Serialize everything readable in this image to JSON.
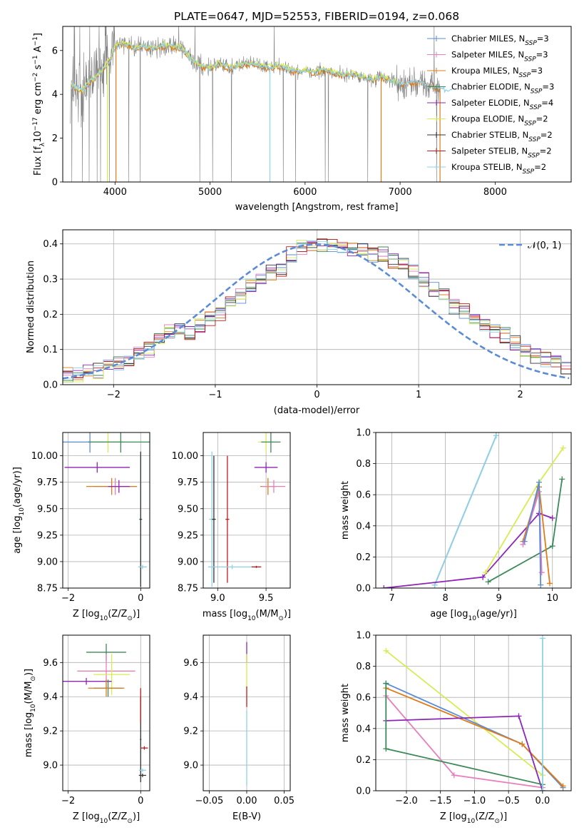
{
  "colors": {
    "Chabrier MILES": "#5b8bd6",
    "Salpeter MILES": "#e87fbd",
    "Kroupa MILES": "#e07b1a",
    "Chabrier ELODIE": "#3c8a59",
    "Salpeter ELODIE": "#8e25b6",
    "Kroupa ELODIE": "#d8ec52",
    "Chabrier STELIB": "#333333",
    "Salpeter STELIB": "#c11b1b",
    "Kroupa STELIB": "#8fd2e6",
    "normal": "#5b8bd6",
    "observed": "#808080"
  },
  "chart_data": [
    {
      "type": "line",
      "title": "PLATE=0647, MJD=52553, FIBERID=0194, z=0.068",
      "xlabel": "wavelength [Angstrom, rest frame]",
      "ylabel_main": "Flux [f",
      "ylabel_sub": "λ",
      "ylabel_rest": "10",
      "ylabel_exp": "−17",
      "ylabel_units": " erg cm",
      "ylabel_u1": "−2",
      "ylabel_u2": " s",
      "ylabel_u3": "−1",
      "ylabel_u4": " A",
      "ylabel_u5": "−1",
      "ylabel_end": "]",
      "xlim": [
        3450,
        8800
      ],
      "ylim": [
        0,
        7.1
      ],
      "xticks": [
        4000,
        5000,
        6000,
        7000,
        8000
      ],
      "yticks": [
        0,
        2,
        4,
        6
      ],
      "grid": false,
      "legend_position": "right",
      "series_labels": [
        {
          "name": "Chabrier MILES",
          "nssp": "3"
        },
        {
          "name": "Salpeter MILES",
          "nssp": "3"
        },
        {
          "name": "Kroupa MILES",
          "nssp": "3"
        },
        {
          "name": "Chabrier ELODIE",
          "nssp": "3"
        },
        {
          "name": "Salpeter ELODIE",
          "nssp": "4"
        },
        {
          "name": "Kroupa ELODIE",
          "nssp": "2"
        },
        {
          "name": "Chabrier STELIB",
          "nssp": "2"
        },
        {
          "name": "Salpeter STELIB",
          "nssp": "2"
        },
        {
          "name": "Kroupa STELIB",
          "nssp": "2"
        }
      ],
      "legend_n": "N",
      "legend_ssp": "SSP",
      "continuum": {
        "wavelength": [
          3500,
          3550,
          3600,
          3650,
          3700,
          3750,
          3800,
          3850,
          3900,
          3950,
          4000,
          4050,
          4100,
          4200,
          4300,
          4400,
          4500,
          4600,
          4700,
          4800,
          4900,
          5000,
          5100,
          5200,
          5300,
          5400,
          5500,
          5600,
          5700,
          5800,
          5900,
          6000,
          6100,
          6200,
          6300,
          6400,
          6500,
          6600,
          6700,
          6800,
          6900,
          7000,
          7100,
          7200,
          7300,
          7400,
          7500,
          7600,
          7700,
          7800,
          7900,
          8000,
          8100,
          8200,
          8300,
          8400,
          8500,
          8600,
          8700
        ],
        "flux": [
          4.2,
          4.4,
          4.3,
          4.1,
          4.4,
          4.6,
          4.8,
          5.0,
          5.3,
          5.6,
          6.1,
          6.3,
          6.3,
          6.1,
          6.2,
          6.1,
          6.2,
          6.2,
          6.1,
          5.6,
          5.3,
          5.2,
          5.4,
          5.2,
          5.3,
          5.4,
          5.4,
          5.2,
          5.3,
          5.2,
          5.0,
          5.1,
          5.0,
          5.1,
          5.0,
          4.9,
          4.9,
          4.8,
          4.7,
          4.8,
          4.6,
          4.5,
          4.5,
          4.6,
          4.4,
          4.3,
          4.2,
          4.2,
          4.3,
          4.2,
          4.3,
          4.3,
          4.4,
          4.3,
          4.4,
          4.4,
          4.4,
          4.5,
          4.5
        ]
      }
    },
    {
      "type": "bar",
      "xlabel": "(data-model)/error",
      "ylabel": "Normed distribution",
      "xlim": [
        -2.5,
        2.5
      ],
      "ylim": [
        0,
        0.44
      ],
      "xticks": [
        -2,
        -1,
        0,
        1,
        2
      ],
      "yticks": [
        0.0,
        0.1,
        0.2,
        0.3,
        0.4
      ],
      "grid": true,
      "legend_position": "top-right",
      "legend_label": "𝒩(0, 1)",
      "bin_width": 0.1,
      "bin_start": -2.5,
      "histogram_values": [
        0.03,
        0.03,
        0.04,
        0.04,
        0.05,
        0.06,
        0.06,
        0.09,
        0.1,
        0.13,
        0.15,
        0.16,
        0.15,
        0.17,
        0.19,
        0.2,
        0.23,
        0.25,
        0.28,
        0.3,
        0.32,
        0.33,
        0.37,
        0.39,
        0.39,
        0.4,
        0.4,
        0.39,
        0.38,
        0.39,
        0.37,
        0.37,
        0.35,
        0.34,
        0.32,
        0.3,
        0.27,
        0.25,
        0.22,
        0.21,
        0.19,
        0.17,
        0.15,
        0.14,
        0.12,
        0.1,
        0.08,
        0.07,
        0.06,
        0.05
      ]
    },
    {
      "type": "scatter",
      "xlabel_main": "Z [log",
      "xlabel_sub": "10",
      "xlabel_rest": "(Z/Z",
      "xlabel_sun": "⊙",
      "xlabel_end": ")]",
      "ylabel_main": "age  [log",
      "ylabel_sub": "10",
      "ylabel_rest": "(age/yr)]",
      "xlim": [
        -2.15,
        0.25
      ],
      "ylim": [
        8.75,
        10.22
      ],
      "xticks": [
        -2,
        0
      ],
      "yticks": [
        8.75,
        9.0,
        9.25,
        9.5,
        9.75,
        10.0
      ],
      "grid": true,
      "points": [
        {
          "series": "Chabrier MILES",
          "x": -1.4,
          "y": 10.13,
          "xerr": 0.9,
          "yerr": 0.1
        },
        {
          "series": "Kroupa ELODIE",
          "x": -0.9,
          "y": 10.13,
          "xerr": 0.4,
          "yerr": 0.1
        },
        {
          "series": "Chabrier ELODIE",
          "x": -0.55,
          "y": 10.13,
          "xerr": 0.9,
          "yerr": 0.1
        },
        {
          "series": "Salpeter ELODIE",
          "x": -1.2,
          "y": 9.89,
          "xerr": 0.9,
          "yerr": 0.05
        },
        {
          "series": "Salpeter MILES",
          "x": -0.7,
          "y": 9.71,
          "xerr": 0.6,
          "yerr": 0.08
        },
        {
          "series": "Kroupa MILES",
          "x": -0.8,
          "y": 9.71,
          "xerr": 0.7,
          "yerr": 0.08
        },
        {
          "series": "Salpeter ELODIE",
          "x": -0.6,
          "y": 9.71,
          "xerr": 0.3,
          "yerr": 0.06
        },
        {
          "series": "Kroupa STELIB",
          "x": 0.0,
          "y": 9.4,
          "xerr": 0.05,
          "yerr": 0.6
        },
        {
          "series": "Chabrier STELIB",
          "x": 0.0,
          "y": 9.4,
          "xerr": 0.03,
          "yerr": 0.64
        },
        {
          "series": "Kroupa STELIB",
          "x": 0.05,
          "y": 8.95,
          "xerr": 0.12,
          "yerr": 0.02
        }
      ]
    },
    {
      "type": "scatter",
      "xlabel_main": "mass [log",
      "xlabel_sub": "10",
      "xlabel_rest": "(M/M",
      "xlabel_sun": "⊙",
      "xlabel_end": ")]",
      "xlim": [
        8.85,
        9.75
      ],
      "ylim": [
        8.75,
        10.22
      ],
      "xticks": [
        9.0,
        9.5
      ],
      "yticks": [
        8.75,
        9.0,
        9.25,
        9.5,
        9.75,
        10.0
      ],
      "grid": true,
      "points": [
        {
          "series": "Kroupa ELODIE",
          "x": 9.5,
          "y": 10.13,
          "xerr": 0.08,
          "yerr": 0.1
        },
        {
          "series": "Chabrier ELODIE",
          "x": 9.55,
          "y": 10.13,
          "xerr": 0.1,
          "yerr": 0.1
        },
        {
          "series": "Salpeter ELODIE",
          "x": 9.5,
          "y": 9.89,
          "xerr": 0.12,
          "yerr": 0.05
        },
        {
          "series": "Kroupa MILES",
          "x": 9.52,
          "y": 9.71,
          "xerr": 0.08,
          "yerr": 0.08
        },
        {
          "series": "Salpeter MILES",
          "x": 9.58,
          "y": 9.71,
          "xerr": 0.12,
          "yerr": 0.06
        },
        {
          "series": "Kroupa STELIB",
          "x": 8.94,
          "y": 9.4,
          "xerr": 0.03,
          "yerr": 0.64
        },
        {
          "series": "Chabrier STELIB",
          "x": 8.96,
          "y": 9.4,
          "xerr": 0.02,
          "yerr": 0.6
        },
        {
          "series": "Salpeter STELIB",
          "x": 9.1,
          "y": 9.4,
          "xerr": 0.02,
          "yerr": 0.6
        },
        {
          "series": "Kroupa STELIB",
          "x": 9.15,
          "y": 8.95,
          "xerr": 0.25,
          "yerr": 0.02
        },
        {
          "series": "Salpeter STELIB",
          "x": 9.4,
          "y": 8.95,
          "xerr": 0.05,
          "yerr": 0.01
        }
      ]
    },
    {
      "type": "line",
      "xlabel_main": "age  [log",
      "xlabel_sub": "10",
      "xlabel_rest": "(age/yr)]",
      "ylabel": "mass weight",
      "xlim": [
        6.7,
        10.35
      ],
      "ylim": [
        0,
        1.0
      ],
      "xticks": [
        7,
        8,
        9,
        10
      ],
      "yticks": [
        0.0,
        0.2,
        0.4,
        0.6,
        0.8,
        1.0
      ],
      "grid": true,
      "series": [
        {
          "name": "Chabrier MILES",
          "x": [
            7.8,
            8.95
          ],
          "y": [
            0.02,
            0.98
          ]
        },
        {
          "name": "Kroupa STELIB",
          "x": [
            7.8,
            8.95
          ],
          "y": [
            0.02,
            0.98
          ]
        },
        {
          "name": "Salpeter ELODIE",
          "x": [
            6.85,
            8.7,
            9.75,
            10.0
          ],
          "y": [
            0.0,
            0.07,
            0.48,
            0.45
          ]
        },
        {
          "name": "Kroupa ELODIE",
          "x": [
            8.75,
            9.75,
            10.2
          ],
          "y": [
            0.1,
            0.68,
            0.9
          ]
        },
        {
          "name": "Chabrier ELODIE",
          "x": [
            8.8,
            10.0,
            10.18
          ],
          "y": [
            0.04,
            0.27,
            0.7
          ]
        },
        {
          "name": "Kroupa MILES",
          "x": [
            9.45,
            9.75,
            9.95
          ],
          "y": [
            0.3,
            0.65,
            0.03
          ]
        },
        {
          "name": "Salpeter MILES",
          "x": [
            9.45,
            9.75,
            9.8
          ],
          "y": [
            0.28,
            0.62,
            0.1
          ]
        },
        {
          "name": "Chabrier MILES",
          "x": [
            9.48,
            9.75,
            9.78
          ],
          "y": [
            0.3,
            0.68,
            0.02
          ]
        }
      ]
    },
    {
      "type": "scatter",
      "xlabel_main": "Z [log",
      "xlabel_sub": "10",
      "xlabel_rest": "(Z/Z",
      "xlabel_sun": "⊙",
      "xlabel_end": ")]",
      "ylabel_main": "mass [log",
      "ylabel_sub": "10",
      "ylabel_rest": "(M/M",
      "ylabel_sun": "⊙",
      "ylabel_end": ")]",
      "xlim": [
        -2.15,
        0.25
      ],
      "ylim": [
        8.85,
        9.76
      ],
      "xticks": [
        -2,
        0
      ],
      "yticks": [
        9.0,
        9.2,
        9.4,
        9.6
      ],
      "grid": true,
      "points": [
        {
          "series": "Chabrier ELODIE",
          "x": -0.95,
          "y": 9.66,
          "xerr": 0.55,
          "yerr": 0.05
        },
        {
          "series": "Salpeter MILES",
          "x": -0.95,
          "y": 9.55,
          "xerr": 0.8,
          "yerr": 0.1
        },
        {
          "series": "Kroupa ELODIE",
          "x": -0.8,
          "y": 9.53,
          "xerr": 0.5,
          "yerr": 0.12
        },
        {
          "series": "Salpeter ELODIE",
          "x": -1.5,
          "y": 9.49,
          "xerr": 0.7,
          "yerr": 0.02
        },
        {
          "series": "Chabrier ELODIE",
          "x": -0.9,
          "y": 9.45,
          "xerr": 0.4,
          "yerr": 0.05
        },
        {
          "series": "Kroupa MILES",
          "x": -0.95,
          "y": 9.45,
          "xerr": 0.5,
          "yerr": 0.05
        },
        {
          "series": "Chabrier STELIB",
          "x": 0.0,
          "y": 9.15,
          "xerr": 0.02,
          "yerr": 0.25
        },
        {
          "series": "Salpeter STELIB",
          "x": 0.0,
          "y": 9.35,
          "xerr": 0.01,
          "yerr": 0.1
        },
        {
          "series": "Salpeter STELIB",
          "x": 0.1,
          "y": 9.1,
          "xerr": 0.1,
          "yerr": 0.01
        },
        {
          "series": "Kroupa STELIB",
          "x": 0.05,
          "y": 8.97,
          "xerr": 0.1,
          "yerr": 0.01
        },
        {
          "series": "Chabrier STELIB",
          "x": 0.05,
          "y": 8.94,
          "xerr": 0.1,
          "yerr": 0.01
        }
      ]
    },
    {
      "type": "scatter",
      "xlabel": "E(B-V)",
      "xlim": [
        -0.058,
        0.058
      ],
      "ylim": [
        8.85,
        9.76
      ],
      "xticks": [
        -0.05,
        0.0,
        0.05
      ],
      "xtick_labels": [
        "−0.05",
        "0.00",
        "0.05"
      ],
      "yticks": [
        9.0,
        9.2,
        9.4,
        9.6
      ],
      "grid": true,
      "points": [
        {
          "series": "Salpeter ELODIE",
          "x": 0.0,
          "y": 9.66,
          "xerr": 0.0,
          "yerr": 0.06
        },
        {
          "series": "Kroupa ELODIE",
          "x": 0.0,
          "y": 9.55,
          "xerr": 0.0,
          "yerr": 0.1
        },
        {
          "series": "Salpeter STELIB",
          "x": 0.0,
          "y": 9.4,
          "xerr": 0.0,
          "yerr": 0.06
        },
        {
          "series": "Kroupa STELIB",
          "x": 0.0,
          "y": 9.1,
          "xerr": 0.0,
          "yerr": 0.22
        }
      ]
    },
    {
      "type": "line",
      "xlabel_main": "Z [log",
      "xlabel_sub": "10",
      "xlabel_rest": "(Z/Z",
      "xlabel_sun": "⊙",
      "xlabel_end": ")]",
      "ylabel": "mass weight",
      "xlim": [
        -2.45,
        0.42
      ],
      "ylim": [
        0,
        1.0
      ],
      "xticks": [
        -2.0,
        -1.5,
        -1.0,
        -0.5,
        0.0
      ],
      "xtick_labels": [
        "−2.0",
        "−1.5",
        "−1.0",
        "−0.5",
        "0.0"
      ],
      "yticks": [
        0.0,
        0.2,
        0.4,
        0.6,
        0.8,
        1.0
      ],
      "grid": true,
      "series": [
        {
          "name": "Kroupa ELODIE",
          "x": [
            -2.3,
            0.0
          ],
          "y": [
            0.9,
            0.1
          ]
        },
        {
          "name": "Chabrier MILES",
          "x": [
            -2.3,
            -0.3,
            0.3
          ],
          "y": [
            0.69,
            0.3,
            0.02
          ]
        },
        {
          "name": "Kroupa MILES",
          "x": [
            -2.3,
            -0.3,
            0.3
          ],
          "y": [
            0.66,
            0.3,
            0.03
          ]
        },
        {
          "name": "Salpeter MILES",
          "x": [
            -2.3,
            -1.3,
            0.0
          ],
          "y": [
            0.61,
            0.1,
            0.02
          ]
        },
        {
          "name": "Salpeter ELODIE",
          "x": [
            -2.3,
            -0.35,
            0.0
          ],
          "y": [
            0.45,
            0.48,
            0.0
          ]
        },
        {
          "name": "Chabrier ELODIE",
          "x": [
            -2.3,
            -2.3,
            0.0,
            0.0
          ],
          "y": [
            0.69,
            0.27,
            0.04,
            0.0
          ]
        },
        {
          "name": "Kroupa STELIB",
          "x": [
            0.0,
            0.0
          ],
          "y": [
            0.0,
            0.98
          ]
        }
      ]
    }
  ]
}
